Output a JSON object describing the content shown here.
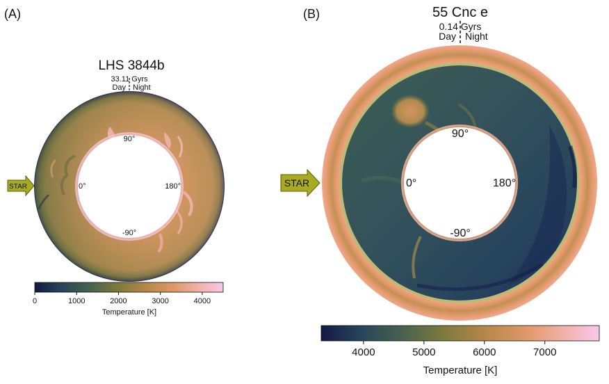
{
  "figure": {
    "colors": {
      "cmap": [
        "#121a45",
        "#26445a",
        "#43604f",
        "#7d7a3c",
        "#b8884a",
        "#e39a6c",
        "#f2b3ad",
        "#f7c8ea"
      ],
      "star_arrow_fill": "#a8ab20",
      "star_arrow_stroke": "#5a5c08",
      "band_edge_green": "#8fd06a"
    },
    "panels": [
      {
        "panel_label": "(A)",
        "planet": "LHS 3844b",
        "age": "33.11 Gyrs",
        "day_label": "Day",
        "night_label": "Night",
        "star_label": "STAR",
        "angles": {
          "a90": "90°",
          "a0": "0°",
          "a180": "180°",
          "am90": "-90°"
        },
        "colorbar": {
          "label": "Temperature [K]",
          "ticks": [
            "0",
            "1000",
            "2000",
            "3000",
            "4000"
          ],
          "tick_values": [
            0,
            1000,
            2000,
            3000,
            4000
          ],
          "range": [
            0,
            4500
          ]
        }
      },
      {
        "panel_label": "(B)",
        "planet": "55 Cnc e",
        "age": "0.14 Gyrs",
        "day_label": "Day",
        "night_label": "Night",
        "star_label": "STAR",
        "angles": {
          "a90": "90°",
          "a0": "0°",
          "a180": "180°",
          "am90": "-90°"
        },
        "colorbar": {
          "label": "Temperature [K]",
          "ticks": [
            "4000",
            "5000",
            "6000",
            "7000"
          ],
          "tick_values": [
            4000,
            5000,
            6000,
            7000
          ],
          "range": [
            3300,
            7900
          ]
        }
      }
    ]
  }
}
